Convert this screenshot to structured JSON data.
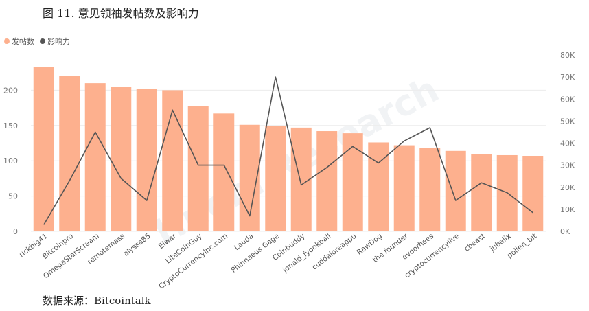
{
  "figure_title": "图 11.  意见领袖发帖数及影响力",
  "source": "数据来源：Bitcointalk",
  "watermark": "Huobi Research",
  "colors": {
    "bar": "#fdb08e",
    "line": "#555555"
  },
  "chart_data": {
    "type": "bar",
    "categories": [
      "rickbig41",
      "Bitcoinpro",
      "OmegaStarScream",
      "remotemass",
      "alyssa85",
      "Elwar",
      "LiteCoinGuy",
      "CryptoCurrencyInc.com",
      "Lauda",
      "Phinnaeus Gage",
      "Coinbuddy",
      "jonald_fyookball",
      "cuddaloreappu",
      "RawDog",
      "the founder",
      "evoorhees",
      "cryptocurrencylive",
      "cbeast",
      "jubalix",
      "pollen_bit"
    ],
    "series": [
      {
        "name": "发帖数",
        "type": "bar",
        "axis": "left",
        "values": [
          233,
          220,
          210,
          205,
          202,
          200,
          178,
          167,
          151,
          149,
          147,
          142,
          139,
          126,
          122,
          118,
          114,
          109,
          108,
          107
        ]
      },
      {
        "name": "影响力",
        "type": "line",
        "axis": "right",
        "values": [
          3000,
          23000,
          45000,
          24000,
          14000,
          55000,
          30000,
          30000,
          7000,
          70000,
          21000,
          29000,
          38500,
          31000,
          41000,
          47000,
          14000,
          22000,
          17500,
          8500
        ]
      }
    ],
    "y_left": {
      "ticks": [
        "0",
        "50",
        "100",
        "150",
        "200"
      ],
      "range": [
        0,
        250
      ]
    },
    "y_right": {
      "ticks": [
        "0K",
        "10K",
        "20K",
        "30K",
        "40K",
        "50K",
        "60K",
        "70K",
        "80K"
      ],
      "range": [
        0,
        80000
      ]
    },
    "legend_position": "top-left",
    "grid": true
  }
}
